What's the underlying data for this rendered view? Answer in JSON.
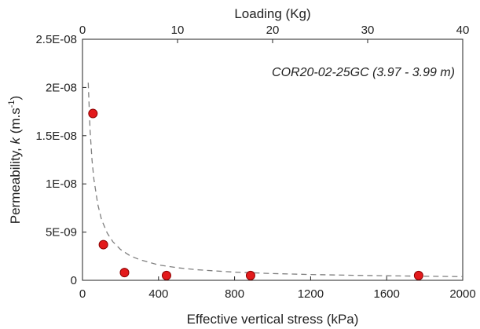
{
  "chart_data": {
    "type": "scatter",
    "annotation": "COR20-02-25GC (3.97 - 3.99 m)",
    "xlabel": "Effective vertical stress (kPa)",
    "ylabel_prefix": "Permeability, ",
    "ylabel_symbol": "k",
    "ylabel_unit_pre": " (m.s",
    "ylabel_unit_exp": "-1",
    "ylabel_unit_post": ")",
    "top_xlabel": "Loading (Kg)",
    "xlim": [
      0,
      2000
    ],
    "ylim": [
      0,
      2.5e-08
    ],
    "top_xlim": [
      0,
      40
    ],
    "x_ticks": [
      0,
      400,
      800,
      1200,
      1600,
      2000
    ],
    "x_tick_labels": [
      "0",
      "400",
      "800",
      "1200",
      "1600",
      "2000"
    ],
    "y_ticks": [
      0,
      5e-09,
      1e-08,
      1.5e-08,
      2e-08,
      2.5e-08
    ],
    "y_tick_labels": [
      "0",
      "5E-09",
      "1E-08",
      "1.5E-08",
      "2E-08",
      "2.5E-08"
    ],
    "top_ticks": [
      0,
      10,
      20,
      30,
      40
    ],
    "top_tick_labels": [
      "0",
      "10",
      "20",
      "30",
      "40"
    ],
    "points": [
      {
        "x": 55,
        "y": 1.73e-08
      },
      {
        "x": 110,
        "y": 3.7e-09
      },
      {
        "x": 221,
        "y": 8e-10
      },
      {
        "x": 442,
        "y": 5e-10
      },
      {
        "x": 884,
        "y": 5e-10
      },
      {
        "x": 1768,
        "y": 5e-10
      }
    ],
    "fit_curve": {
      "style": "dashed",
      "color": "#7f7f7f",
      "x": [
        30,
        40,
        50,
        60,
        80,
        100,
        130,
        160,
        200,
        250,
        300,
        400,
        500,
        600,
        800,
        1000,
        1200,
        1400,
        1600,
        1800,
        2000
      ],
      "y": [
        2.05e-08,
        1.55e-08,
        1.25e-08,
        1.05e-08,
        7.9e-09,
        6.3e-09,
        4.9e-09,
        4e-09,
        3.2e-09,
        2.55e-09,
        2.15e-09,
        1.6e-09,
        1.3e-09,
        1.1e-09,
        8.5e-10,
        7e-10,
        6e-10,
        5.3e-10,
        4.7e-10,
        4.2e-10,
        3.8e-10
      ]
    },
    "marker_color": "#e31a1c",
    "marker_edge": "#8b0000",
    "grid": false
  }
}
